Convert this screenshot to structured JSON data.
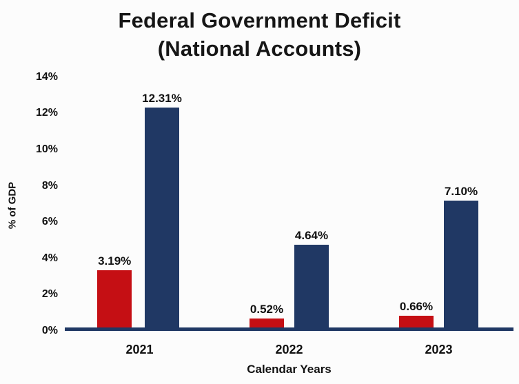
{
  "chart_data": {
    "type": "bar",
    "title": "Federal Government Deficit",
    "subtitle": "(National Accounts)",
    "xlabel": "Calendar Years",
    "ylabel": "% of GDP",
    "categories": [
      "2021",
      "2022",
      "2023"
    ],
    "series": [
      {
        "name": "red",
        "color": "#c50f14",
        "values": [
          3.19,
          0.52,
          0.66
        ],
        "labels": [
          "3.19%",
          "0.52%",
          "0.66%"
        ]
      },
      {
        "name": "navy",
        "color": "#203864",
        "values": [
          12.31,
          4.64,
          7.1
        ],
        "labels": [
          "12.31%",
          "4.64%",
          "7.10%"
        ]
      }
    ],
    "ylim": [
      0,
      14
    ],
    "ytick_labels": [
      "0%",
      "2%",
      "4%",
      "6%",
      "8%",
      "10%",
      "12%",
      "14%"
    ],
    "grid": false,
    "legend": "none",
    "axis_color": "#203864",
    "background": "#fcfcfc"
  }
}
